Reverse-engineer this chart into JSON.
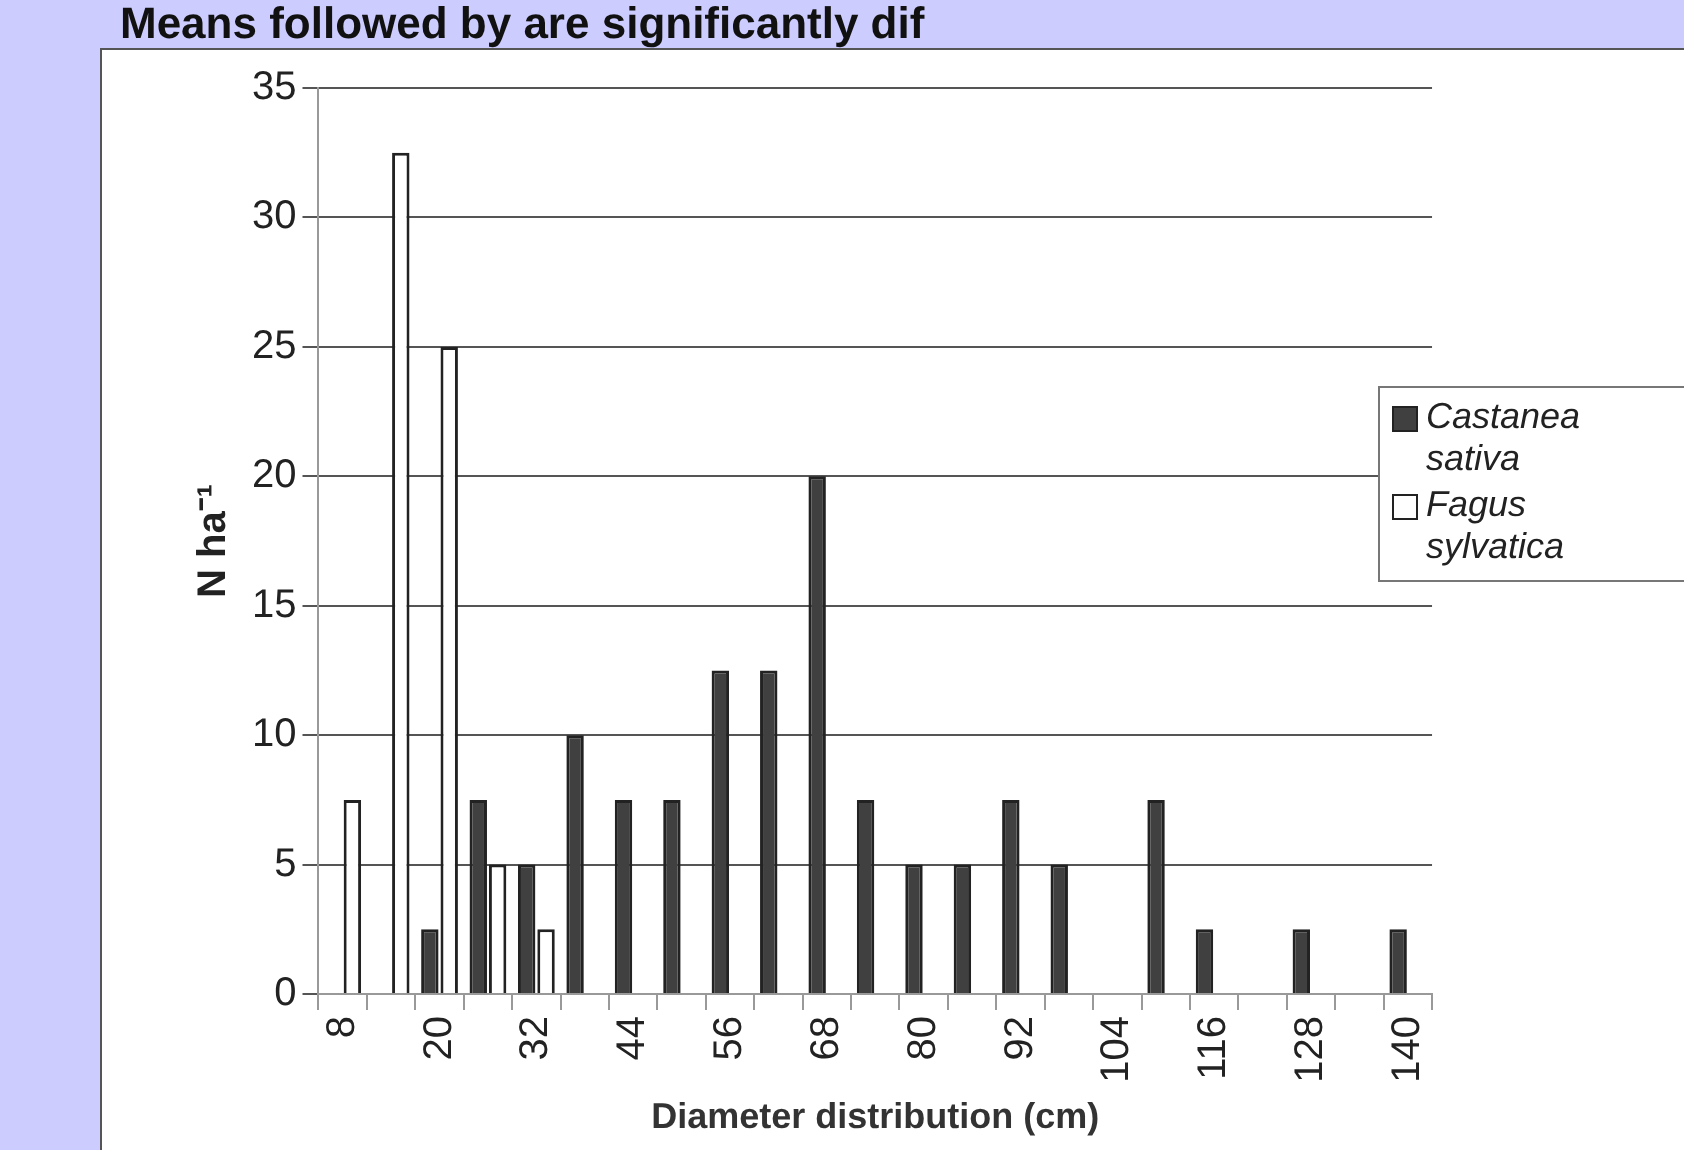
{
  "chart_data": {
    "type": "bar",
    "title": "Means followed by are significantly dif",
    "xlabel": "Diameter distribution (cm)",
    "ylabel": "N ha⁻¹",
    "categories": [
      "8",
      null,
      "20",
      null,
      "32",
      null,
      "44",
      null,
      "56",
      null,
      "68",
      null,
      "80",
      null,
      "92",
      null,
      "104",
      null,
      "116",
      null,
      "128",
      null,
      "140"
    ],
    "series": [
      {
        "name": "Castanea sativa",
        "color": "#404040",
        "values": [
          0,
          0,
          2.5,
          7.5,
          5,
          10,
          7.5,
          7.5,
          12.5,
          12.5,
          20,
          7.5,
          5,
          5,
          7.5,
          5,
          0,
          7.5,
          2.5,
          0,
          2.5,
          0,
          2.5
        ]
      },
      {
        "name": "Fagus sylvatica",
        "color": "#ffffff",
        "values": [
          7.5,
          32.5,
          25,
          5,
          2.5,
          0,
          0,
          0,
          0,
          0,
          0,
          0,
          0,
          0,
          0,
          0,
          0,
          0,
          0,
          0,
          0,
          0,
          0
        ]
      }
    ],
    "ylim": [
      0,
      35
    ],
    "yticks": [
      0,
      5,
      10,
      15,
      20,
      25,
      30,
      35
    ],
    "grid": "y",
    "legend": "right"
  }
}
